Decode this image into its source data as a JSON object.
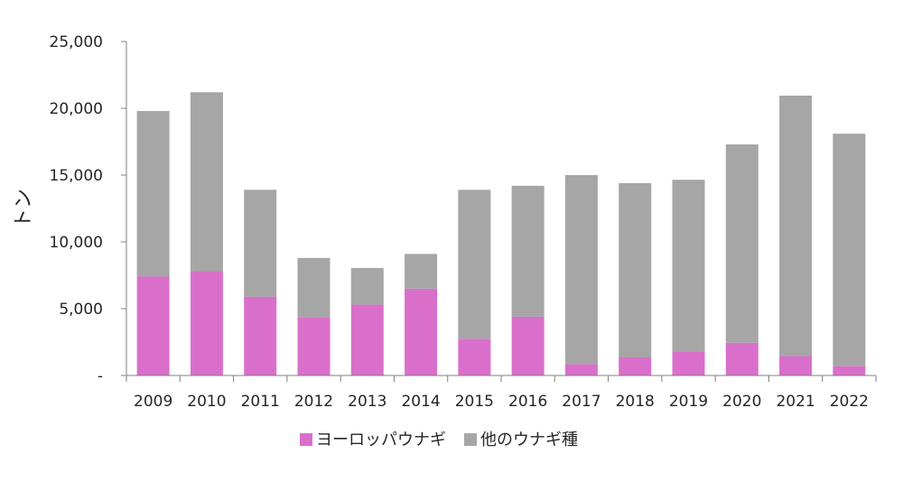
{
  "chart_data": {
    "type": "bar",
    "stacked": true,
    "title": "",
    "xlabel": "",
    "ylabel": "トン",
    "ylim": [
      0,
      25000
    ],
    "yticks": [
      0,
      5000,
      10000,
      15000,
      20000,
      25000
    ],
    "ytick_labels": [
      "-",
      "5,000",
      "10,000",
      "15,000",
      "20,000",
      "25,000"
    ],
    "grid": false,
    "legend_position": "bottom",
    "categories": [
      "2009",
      "2010",
      "2011",
      "2012",
      "2013",
      "2014",
      "2015",
      "2016",
      "2017",
      "2018",
      "2019",
      "2020",
      "2021",
      "2022"
    ],
    "series": [
      {
        "name": "ヨーロッパウナギ",
        "color": "#DA6FCB",
        "values": [
          7400,
          7800,
          5900,
          4350,
          5300,
          6500,
          2750,
          4400,
          850,
          1350,
          1800,
          2450,
          1450,
          700
        ]
      },
      {
        "name": "他のウナギ種",
        "color": "#A6A6A6",
        "values": [
          12400,
          13400,
          8000,
          4450,
          2750,
          2600,
          11150,
          9800,
          14150,
          13050,
          12850,
          14850,
          19500,
          17400
        ]
      }
    ]
  }
}
